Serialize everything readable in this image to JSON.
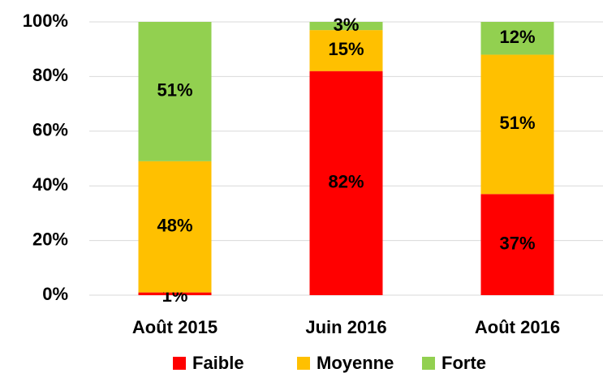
{
  "chart_data": {
    "type": "stacked_bar",
    "categories": [
      "Août 2015",
      "Juin 2016",
      "Août 2016"
    ],
    "series": [
      {
        "name": "Faible",
        "color": "#ff0000",
        "values": [
          1,
          82,
          37
        ],
        "value_labels": [
          "1%",
          "82%",
          "37%"
        ]
      },
      {
        "name": "Moyenne",
        "color": "#ffc000",
        "values": [
          48,
          15,
          51
        ],
        "value_labels": [
          "48%",
          "15%",
          "51%"
        ]
      },
      {
        "name": "Forte",
        "color": "#92d050",
        "values": [
          51,
          3,
          12
        ],
        "value_labels": [
          "51%",
          "3%",
          "12%"
        ]
      }
    ],
    "ylim": [
      0,
      100
    ],
    "yticks": [
      {
        "value": 0,
        "label": "0%"
      },
      {
        "value": 20,
        "label": "20%"
      },
      {
        "value": 40,
        "label": "40%"
      },
      {
        "value": 60,
        "label": "60%"
      },
      {
        "value": 80,
        "label": "80%"
      },
      {
        "value": 100,
        "label": "100%"
      }
    ],
    "grid": true,
    "legend": "bottom"
  }
}
